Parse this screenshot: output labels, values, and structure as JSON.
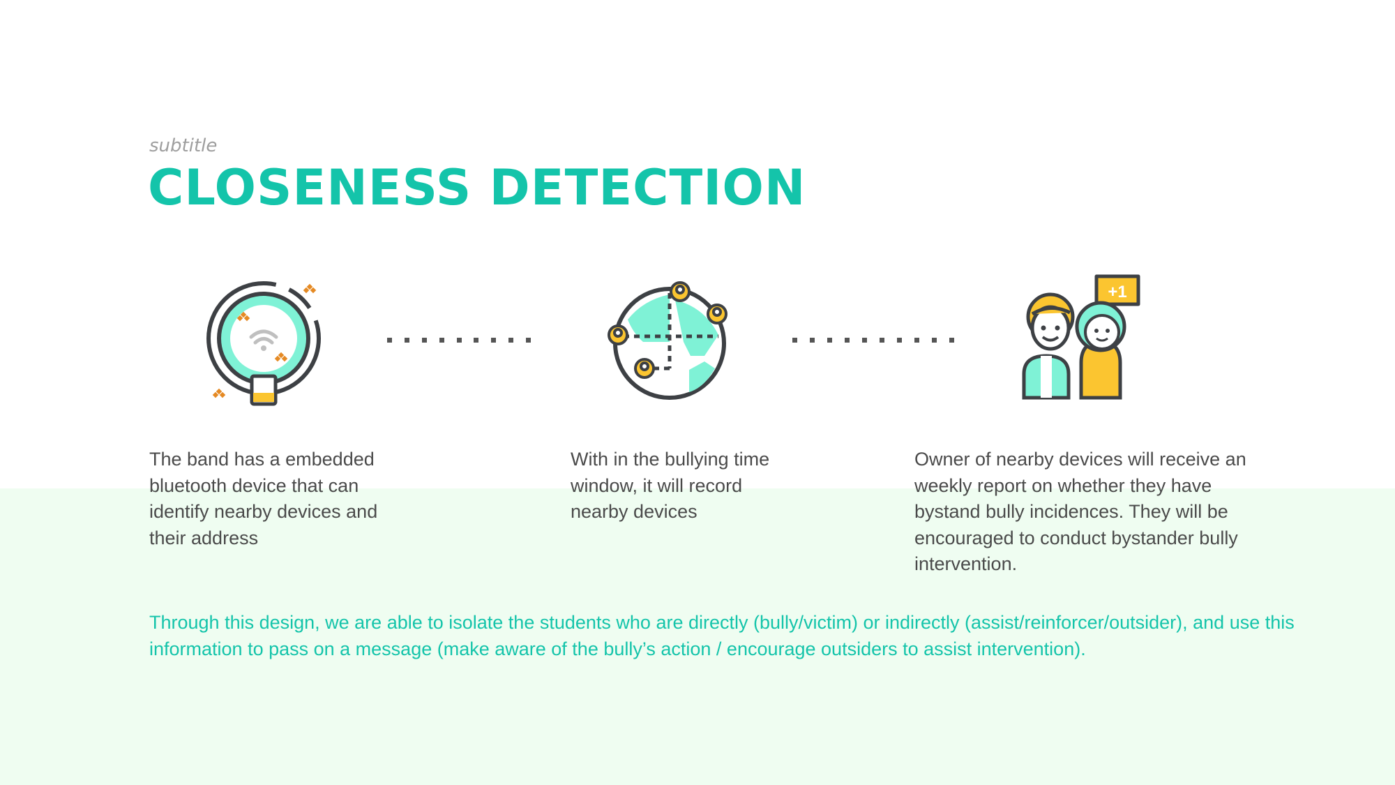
{
  "slide": {
    "subtitle": "subtitle",
    "title": "CLOSENESS DETECTION",
    "steps": [
      {
        "icon": "bluetooth-band-icon",
        "text": "The band has a embedded bluetooth device that can identify nearby devices and their address"
      },
      {
        "icon": "globe-network-icon",
        "text": "With in the bullying time window, it will record nearby devices"
      },
      {
        "icon": "people-plus-one-icon",
        "text": "Owner of nearby devices will receive an weekly report on whether they have bystand bully incidences. They will be encouraged to conduct bystander bully intervention."
      }
    ],
    "badge": "+1",
    "summary": "Through this design, we are able to isolate the students who are directly (bully/victim) or indirectly (assist/reinforcer/outsider), and use this information to pass on a message (make aware of the bully’s action / encourage outsiders to assist intervention)."
  },
  "colors": {
    "accent": "#14c4aa",
    "mint": "#7ff2d6",
    "yellow": "#fbc530",
    "orange": "#e58a24",
    "stroke": "#3d4044",
    "lower_background": "#effdf1"
  }
}
